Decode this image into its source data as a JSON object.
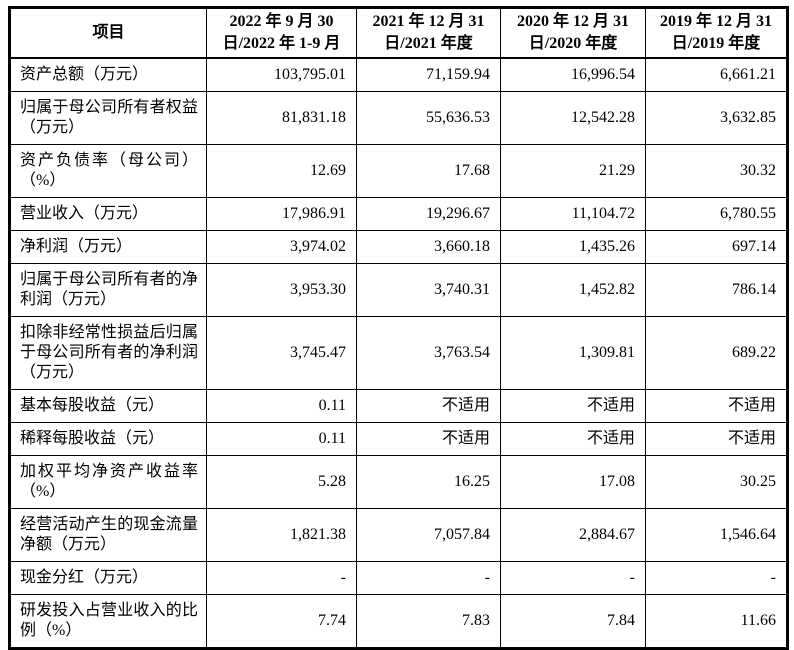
{
  "colors": {
    "background": "#ffffff",
    "border": "#000000",
    "text": "#000000"
  },
  "table": {
    "columns": [
      {
        "label": "项目"
      },
      {
        "line1": "2022 年 9 月 30",
        "line2": "日/2022 年 1-9 月"
      },
      {
        "line1": "2021 年 12 月 31",
        "line2": "日/2021 年度"
      },
      {
        "line1": "2020 年 12 月 31",
        "line2": "日/2020 年度"
      },
      {
        "line1": "2019 年 12 月 31",
        "line2": "日/2019 年度"
      }
    ],
    "rows": [
      {
        "label": "资产总额（万元）",
        "values": [
          "103,795.01",
          "71,159.94",
          "16,996.54",
          "6,661.21"
        ]
      },
      {
        "label": "归属于母公司所有者权益（万元）",
        "values": [
          "81,831.18",
          "55,636.53",
          "12,542.28",
          "3,632.85"
        ]
      },
      {
        "label": "资产负债率（母公司）（%）",
        "values": [
          "12.69",
          "17.68",
          "21.29",
          "30.32"
        ]
      },
      {
        "label": "营业收入（万元）",
        "values": [
          "17,986.91",
          "19,296.67",
          "11,104.72",
          "6,780.55"
        ]
      },
      {
        "label": "净利润（万元）",
        "values": [
          "3,974.02",
          "3,660.18",
          "1,435.26",
          "697.14"
        ]
      },
      {
        "label": "归属于母公司所有者的净利润（万元）",
        "values": [
          "3,953.30",
          "3,740.31",
          "1,452.82",
          "786.14"
        ]
      },
      {
        "label": "扣除非经常性损益后归属于母公司所有者的净利润（万元）",
        "values": [
          "3,745.47",
          "3,763.54",
          "1,309.81",
          "689.22"
        ]
      },
      {
        "label": "基本每股收益（元）",
        "values": [
          "0.11",
          "不适用",
          "不适用",
          "不适用"
        ]
      },
      {
        "label": "稀释每股收益（元）",
        "values": [
          "0.11",
          "不适用",
          "不适用",
          "不适用"
        ]
      },
      {
        "label": "加权平均净资产收益率（%）",
        "values": [
          "5.28",
          "16.25",
          "17.08",
          "30.25"
        ]
      },
      {
        "label": "经营活动产生的现金流量净额（万元）",
        "values": [
          "1,821.38",
          "7,057.84",
          "2,884.67",
          "1,546.64"
        ]
      },
      {
        "label": "现金分红（万元）",
        "values": [
          "-",
          "-",
          "-",
          "-"
        ]
      },
      {
        "label": "研发投入占营业收入的比例（%）",
        "values": [
          "7.74",
          "7.83",
          "7.84",
          "11.66"
        ]
      }
    ]
  }
}
